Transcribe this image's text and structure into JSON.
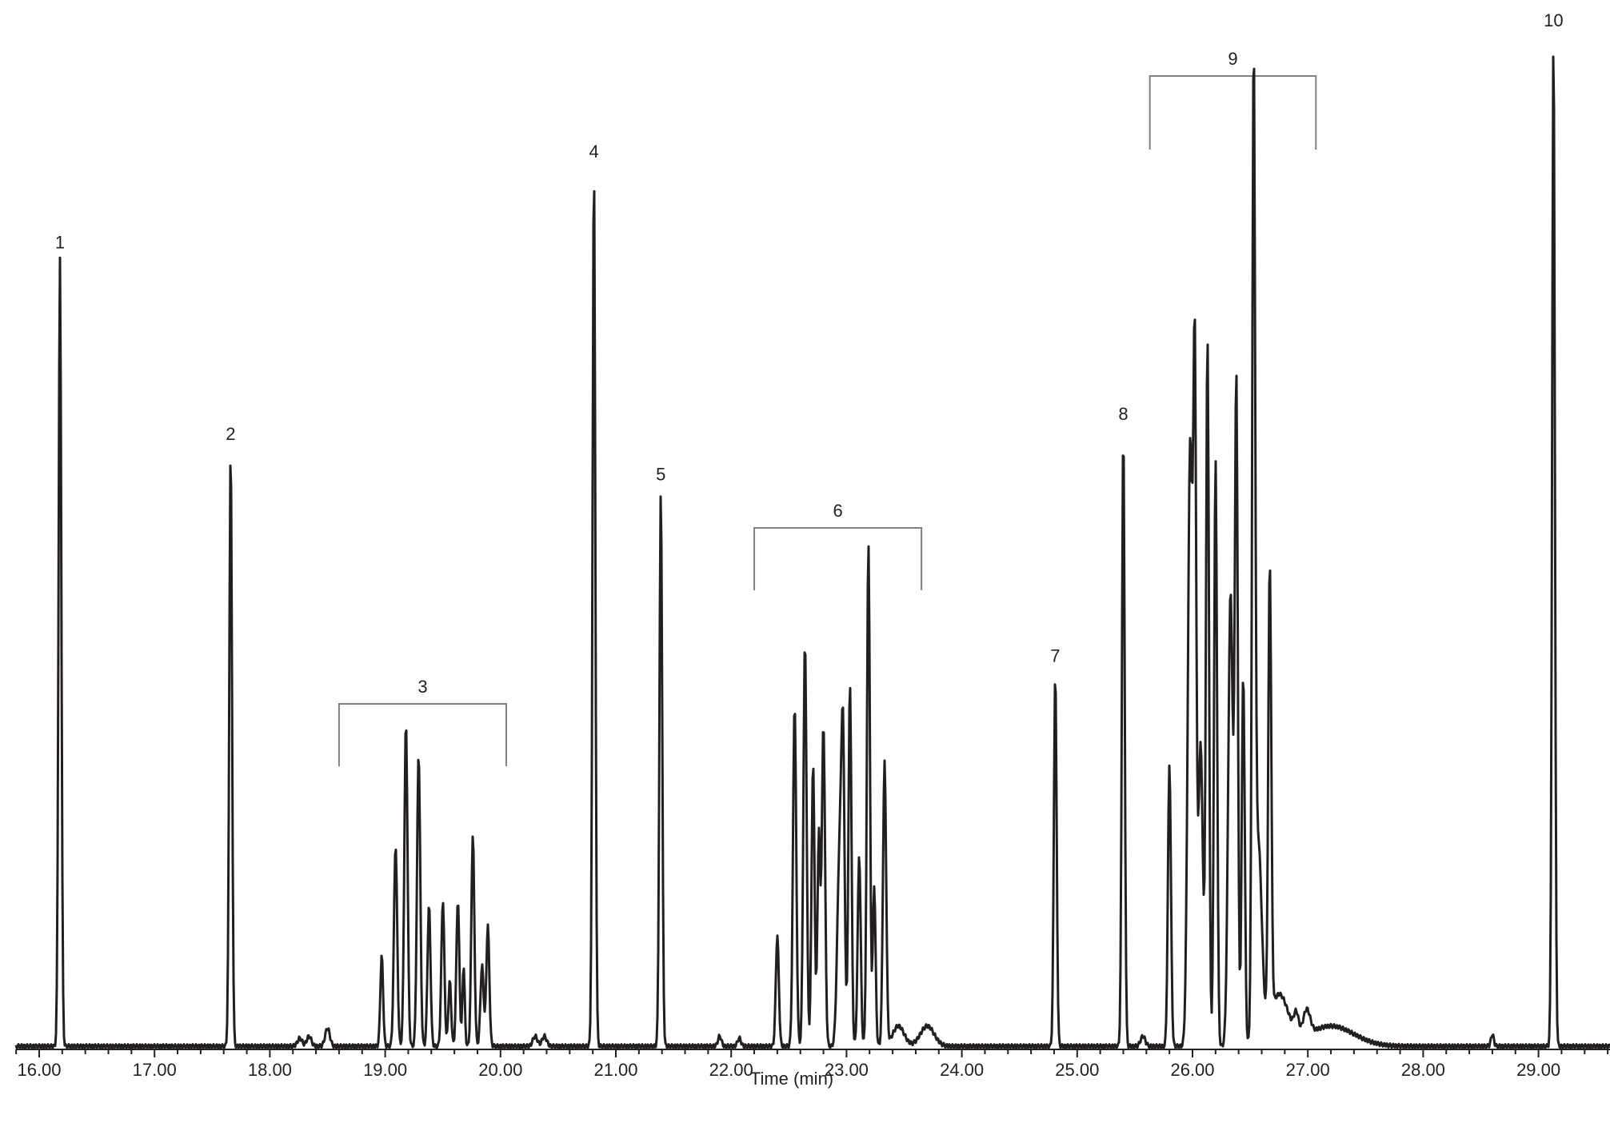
{
  "chart_data": {
    "type": "line",
    "title": "",
    "xlabel": "Time (min)",
    "ylabel": "",
    "xlim": [
      15.8,
      29.6
    ],
    "grid": false,
    "x_ticks": [
      "16.00",
      "17.00",
      "18.00",
      "19.00",
      "20.00",
      "21.00",
      "22.00",
      "23.00",
      "24.00",
      "25.00",
      "26.00",
      "27.00",
      "28.00",
      "29.00"
    ],
    "peak_labels": [
      {
        "label": "1",
        "time": 16.18,
        "relative_height": 0.78
      },
      {
        "label": "2",
        "time": 17.66,
        "relative_height": 0.59
      },
      {
        "label": "3",
        "time_range": [
          18.6,
          20.05
        ],
        "bracket": true
      },
      {
        "label": "4",
        "time": 20.81,
        "relative_height": 0.87
      },
      {
        "label": "5",
        "time": 21.39,
        "relative_height": 0.55
      },
      {
        "label": "6",
        "time_range": [
          22.2,
          23.65
        ],
        "bracket": true
      },
      {
        "label": "7",
        "time": 24.81,
        "relative_height": 0.37
      },
      {
        "label": "8",
        "time": 25.4,
        "relative_height": 0.61
      },
      {
        "label": "9",
        "time_range": [
          25.63,
          27.07
        ],
        "bracket": true
      },
      {
        "label": "10",
        "time": 29.13,
        "relative_height": 1.0
      }
    ],
    "peaks": [
      [
        16.18,
        0.78,
        0.012
      ],
      [
        17.66,
        0.59,
        0.012
      ],
      [
        18.26,
        0.008,
        0.02
      ],
      [
        18.34,
        0.01,
        0.02
      ],
      [
        18.5,
        0.018,
        0.02
      ],
      [
        18.97,
        0.09,
        0.012
      ],
      [
        19.09,
        0.2,
        0.014
      ],
      [
        19.18,
        0.32,
        0.014
      ],
      [
        19.29,
        0.29,
        0.014
      ],
      [
        19.38,
        0.14,
        0.013
      ],
      [
        19.5,
        0.145,
        0.013
      ],
      [
        19.56,
        0.065,
        0.012
      ],
      [
        19.63,
        0.145,
        0.013
      ],
      [
        19.68,
        0.08,
        0.01
      ],
      [
        19.76,
        0.21,
        0.013
      ],
      [
        19.84,
        0.08,
        0.014
      ],
      [
        19.89,
        0.12,
        0.013
      ],
      [
        20.3,
        0.01,
        0.02
      ],
      [
        20.38,
        0.01,
        0.02
      ],
      [
        20.81,
        0.87,
        0.012
      ],
      [
        21.39,
        0.55,
        0.012
      ],
      [
        21.9,
        0.01,
        0.015
      ],
      [
        22.07,
        0.008,
        0.015
      ],
      [
        22.4,
        0.11,
        0.013
      ],
      [
        22.55,
        0.34,
        0.014
      ],
      [
        22.64,
        0.4,
        0.014
      ],
      [
        22.71,
        0.28,
        0.013
      ],
      [
        22.76,
        0.21,
        0.012
      ],
      [
        22.8,
        0.32,
        0.014
      ],
      [
        22.94,
        0.19,
        0.02
      ],
      [
        22.97,
        0.27,
        0.014
      ],
      [
        23.03,
        0.36,
        0.013
      ],
      [
        23.11,
        0.19,
        0.013
      ],
      [
        23.19,
        0.5,
        0.013
      ],
      [
        23.24,
        0.16,
        0.012
      ],
      [
        23.33,
        0.28,
        0.014
      ],
      [
        23.45,
        0.02,
        0.05
      ],
      [
        23.7,
        0.02,
        0.06
      ],
      [
        24.81,
        0.37,
        0.012
      ],
      [
        25.4,
        0.61,
        0.012
      ],
      [
        25.57,
        0.01,
        0.02
      ],
      [
        25.8,
        0.28,
        0.013
      ],
      [
        25.98,
        0.6,
        0.02
      ],
      [
        26.02,
        0.63,
        0.013
      ],
      [
        26.07,
        0.3,
        0.02
      ],
      [
        26.13,
        0.7,
        0.013
      ],
      [
        26.2,
        0.58,
        0.013
      ],
      [
        26.33,
        0.45,
        0.02
      ],
      [
        26.38,
        0.65,
        0.013
      ],
      [
        26.44,
        0.37,
        0.013
      ],
      [
        26.53,
        0.91,
        0.013
      ],
      [
        26.57,
        0.2,
        0.03
      ],
      [
        26.67,
        0.45,
        0.013
      ],
      [
        26.75,
        0.05,
        0.08
      ],
      [
        26.9,
        0.02,
        0.02
      ],
      [
        26.99,
        0.025,
        0.03
      ],
      [
        27.2,
        0.02,
        0.2
      ],
      [
        28.6,
        0.012,
        0.012
      ],
      [
        29.13,
        1.0,
        0.012
      ]
    ]
  },
  "axis": {
    "title": "Time (min)"
  }
}
